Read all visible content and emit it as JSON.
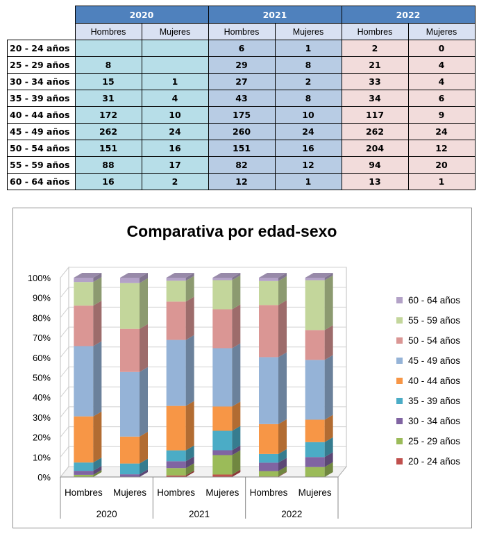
{
  "table": {
    "years": [
      "2020",
      "2021",
      "2022"
    ],
    "sexes": [
      "Hombres",
      "Mujeres"
    ],
    "rows": [
      {
        "age": "20 - 24 años",
        "vals": [
          "",
          "",
          "6",
          "1",
          "2",
          "0"
        ]
      },
      {
        "age": "25 - 29 años",
        "vals": [
          "8",
          "",
          "29",
          "8",
          "21",
          "4"
        ]
      },
      {
        "age": "30 - 34 años",
        "vals": [
          "15",
          "1",
          "27",
          "2",
          "33",
          "4"
        ]
      },
      {
        "age": "35 - 39 años",
        "vals": [
          "31",
          "4",
          "43",
          "8",
          "34",
          "6"
        ]
      },
      {
        "age": "40 - 44 años",
        "vals": [
          "172",
          "10",
          "175",
          "10",
          "117",
          "9"
        ]
      },
      {
        "age": "45 - 49 años",
        "vals": [
          "262",
          "24",
          "260",
          "24",
          "262",
          "24"
        ]
      },
      {
        "age": "50 - 54 años",
        "vals": [
          "151",
          "16",
          "151",
          "16",
          "204",
          "12"
        ]
      },
      {
        "age": "55 - 59 años",
        "vals": [
          "88",
          "17",
          "82",
          "12",
          "94",
          "20"
        ]
      },
      {
        "age": "60 - 64 años",
        "vals": [
          "16",
          "2",
          "12",
          "1",
          "13",
          "1"
        ]
      }
    ]
  },
  "chart_data": {
    "type": "bar",
    "stacked": "percent",
    "title": "Comparativa por edad-sexo",
    "yticks": [
      "0%",
      "10%",
      "20%",
      "30%",
      "40%",
      "50%",
      "60%",
      "70%",
      "80%",
      "90%",
      "100%"
    ],
    "ylim": [
      0,
      100
    ],
    "categories": [
      "Hombres",
      "Mujeres",
      "Hombres",
      "Mujeres",
      "Hombres",
      "Mujeres"
    ],
    "groups": [
      "2020",
      "2021",
      "2022"
    ],
    "legend_position": "right",
    "series": [
      {
        "name": "20 - 24 años",
        "color": "#c0504d",
        "values": [
          0,
          0,
          6,
          1,
          2,
          0
        ]
      },
      {
        "name": "25 - 29 años",
        "color": "#9bbb59",
        "values": [
          8,
          0,
          29,
          8,
          21,
          4
        ]
      },
      {
        "name": "30 - 34 años",
        "color": "#8064a2",
        "values": [
          15,
          1,
          27,
          2,
          33,
          4
        ]
      },
      {
        "name": "35 - 39 años",
        "color": "#4bacc6",
        "values": [
          31,
          4,
          43,
          8,
          34,
          6
        ]
      },
      {
        "name": "40 - 44 años",
        "color": "#f79646",
        "values": [
          172,
          10,
          175,
          10,
          117,
          9
        ]
      },
      {
        "name": "45 - 49 años",
        "color": "#95b3d7",
        "values": [
          262,
          24,
          260,
          24,
          262,
          24
        ]
      },
      {
        "name": "50 - 54 años",
        "color": "#da9694",
        "values": [
          151,
          16,
          151,
          16,
          204,
          12
        ]
      },
      {
        "name": "55 - 59 años",
        "color": "#c3d69b",
        "values": [
          88,
          17,
          82,
          12,
          94,
          20
        ]
      },
      {
        "name": "60 - 64 años",
        "color": "#b3a2c7",
        "values": [
          16,
          2,
          12,
          1,
          13,
          1
        ]
      }
    ]
  }
}
